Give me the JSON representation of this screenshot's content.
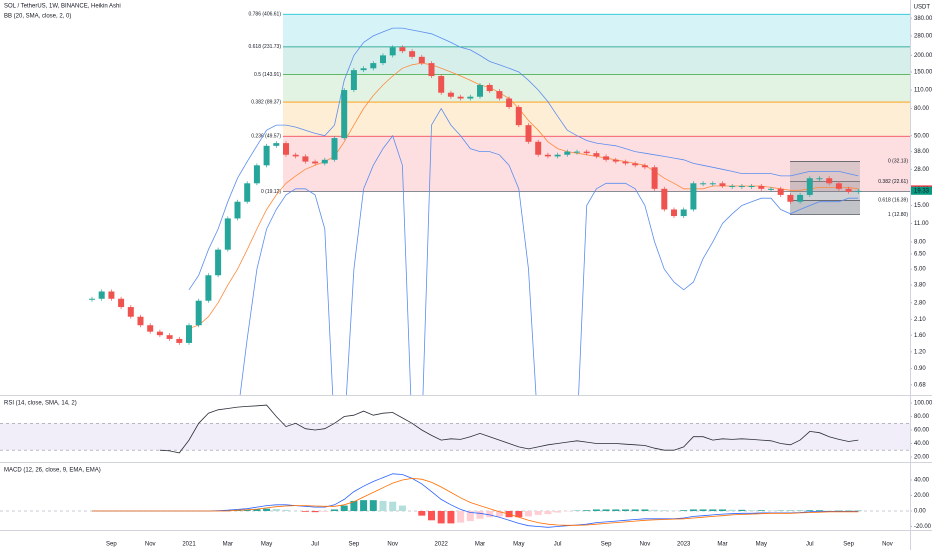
{
  "header": {
    "title": "SOL / TetherUS, 1W, BINANCE, Heikin Ashi",
    "indicator": "BB (20, SMA, close, 2, 0)",
    "currency": "USDT",
    "price_tags": [
      {
        "value": 19.8,
        "label": "19.80",
        "color": "#f23645"
      },
      {
        "value": 19.33,
        "label": "19.33",
        "color": "#089981"
      }
    ]
  },
  "chart_data": [
    {
      "type": "candlestick",
      "log_scale": true,
      "categories": [
        null,
        null,
        "Sep",
        null,
        null,
        null,
        "Nov",
        null,
        null,
        null,
        "2021",
        null,
        null,
        null,
        "Mar",
        null,
        null,
        null,
        "May",
        null,
        null,
        null,
        null,
        "Jul",
        null,
        null,
        null,
        "Sep",
        null,
        null,
        null,
        "Nov",
        null,
        null,
        null,
        null,
        "2022",
        null,
        null,
        null,
        "Mar",
        null,
        null,
        null,
        "May",
        null,
        null,
        null,
        "Jul",
        null,
        null,
        null,
        null,
        "Sep",
        null,
        null,
        null,
        "Nov",
        null,
        null,
        null,
        "2023",
        null,
        null,
        null,
        "Mar",
        null,
        null,
        null,
        "May",
        null,
        null,
        null,
        null,
        "Jul",
        null,
        null,
        null,
        "Sep",
        null,
        null,
        null,
        "Nov"
      ],
      "values": [
        3.0,
        3.4,
        3.0,
        2.6,
        2.2,
        1.9,
        1.7,
        1.6,
        1.5,
        1.4,
        1.9,
        2.9,
        4.5,
        7,
        12,
        16,
        22,
        30,
        42,
        44,
        36,
        35,
        32,
        31,
        33,
        48,
        110,
        155,
        160,
        175,
        200,
        230,
        215,
        195,
        175,
        140,
        105,
        98,
        95,
        98,
        120,
        108,
        95,
        82,
        60,
        45,
        36,
        35,
        36,
        38,
        38,
        37,
        35,
        33,
        32,
        31,
        30,
        29,
        20,
        14,
        12.5,
        14,
        22,
        22,
        22,
        21,
        21,
        21,
        21,
        20,
        20,
        18,
        16,
        18,
        24,
        24,
        22,
        20,
        19,
        19.3,
        null,
        null,
        null
      ],
      "colors": {
        "up": "#26a69a",
        "down": "#ef5350"
      },
      "ylim": [
        0.57,
        520
      ],
      "yticks": [
        {
          "value": 380,
          "label": "380.00"
        },
        {
          "value": 280,
          "label": "280.00"
        },
        {
          "value": 200,
          "label": "200.00"
        },
        {
          "value": 150,
          "label": "150.00"
        },
        {
          "value": 110,
          "label": "110.00"
        },
        {
          "value": 80,
          "label": "80.00"
        },
        {
          "value": 50,
          "label": "50.00"
        },
        {
          "value": 38,
          "label": "38.00"
        },
        {
          "value": 28,
          "label": "28.00"
        },
        {
          "value": 15,
          "label": "15.00"
        },
        {
          "value": 11,
          "label": "11.00"
        },
        {
          "value": 8,
          "label": "8.00"
        },
        {
          "value": 6.5,
          "label": "6.50"
        },
        {
          "value": 5,
          "label": "5.00"
        },
        {
          "value": 3.8,
          "label": "3.80"
        },
        {
          "value": 2.8,
          "label": "2.80"
        },
        {
          "value": 2.1,
          "label": "2.10"
        },
        {
          "value": 1.6,
          "label": "1.60"
        },
        {
          "value": 1.2,
          "label": "1.20"
        },
        {
          "value": 0.9,
          "label": "0.90"
        },
        {
          "value": 0.68,
          "label": "0.68"
        }
      ],
      "overlays": [
        {
          "color": "#5b8def",
          "values": [
            null,
            null,
            null,
            null,
            null,
            null,
            null,
            null,
            null,
            null,
            3.5,
            4.5,
            7,
            10,
            16,
            24,
            32,
            42,
            55,
            60,
            60,
            58,
            55,
            52,
            50,
            60,
            130,
            200,
            250,
            280,
            300,
            320,
            320,
            310,
            300,
            290,
            270,
            250,
            230,
            220,
            200,
            180,
            170,
            160,
            150,
            130,
            110,
            90,
            70,
            55,
            50,
            46,
            44,
            43,
            42,
            40,
            38,
            37,
            36,
            35,
            34,
            33,
            31,
            30,
            29,
            28,
            27,
            26,
            26,
            26,
            26,
            25,
            25,
            26,
            27,
            27,
            27,
            27,
            26,
            25,
            null,
            null,
            null
          ]
        },
        {
          "color": "#ff8a3d",
          "values": [
            null,
            null,
            null,
            null,
            null,
            null,
            null,
            null,
            null,
            null,
            1.8,
            1.9,
            2.2,
            2.8,
            3.8,
            5,
            7,
            10,
            14,
            18,
            22,
            25,
            28,
            30,
            32,
            35,
            45,
            60,
            80,
            100,
            120,
            140,
            160,
            170,
            175,
            170,
            160,
            150,
            140,
            130,
            120,
            115,
            105,
            95,
            80,
            65,
            55,
            45,
            40,
            38,
            37,
            36,
            35,
            34,
            33,
            32,
            31,
            30,
            27,
            24,
            22,
            20,
            20,
            20,
            21,
            21,
            21,
            21,
            21,
            21,
            20.5,
            20,
            19.5,
            19.5,
            20,
            20.5,
            20.5,
            20.5,
            20.5,
            20,
            null,
            null,
            null
          ]
        },
        {
          "color": "#5b8def",
          "values": [
            null,
            null,
            null,
            null,
            null,
            null,
            null,
            null,
            null,
            null,
            0.5,
            0.4,
            0.3,
            0.3,
            0.3,
            0.4,
            1.5,
            5,
            10,
            14,
            18,
            20,
            20,
            18,
            10,
            0.3,
            0.3,
            5,
            20,
            30,
            40,
            50,
            30,
            0.3,
            0.3,
            60,
            80,
            60,
            50,
            40,
            38,
            38,
            36,
            30,
            20,
            5,
            0.3,
            0.3,
            0.3,
            0.3,
            0.3,
            15,
            20,
            22,
            22,
            22,
            20,
            15,
            8,
            5,
            4,
            3.5,
            4,
            6,
            8,
            11,
            13,
            15,
            16,
            17,
            17,
            14,
            13,
            14,
            15,
            16,
            16,
            16,
            17,
            17,
            null,
            null,
            null
          ]
        }
      ],
      "fib": [
        {
          "label": "0.786 (406.61)",
          "value": 406.61,
          "color": "#00bcd4"
        },
        {
          "label": "0.618 (231.73)",
          "value": 231.73,
          "color": "#089981"
        },
        {
          "label": "0.5 (143.91)",
          "value": 143.91,
          "color": "#4caf50"
        },
        {
          "label": "0.382 (89.37)",
          "value": 89.37,
          "color": "#ff9800"
        },
        {
          "label": "0.236 (49.57)",
          "value": 49.57,
          "color": "#f23645"
        },
        {
          "label": "0 (19.12)",
          "value": 19.12,
          "color": "#787b86"
        }
      ],
      "fib_small": [
        {
          "label": "0 (32.13)",
          "value": 32.13,
          "color": "#787b86"
        },
        {
          "label": "0.382 (22.61)",
          "value": 22.61,
          "color": "#787b86"
        },
        {
          "label": "0.618 (16.39)",
          "value": 16.39,
          "color": "#787b86"
        },
        {
          "label": "1 (12.80)",
          "value": 12.8,
          "color": "#787b86"
        }
      ]
    },
    {
      "type": "line",
      "title": "RSI (14, close, SMA, 14, 2)",
      "color": "#2a2e39",
      "band": [
        30,
        70
      ],
      "band_color": "#7e57c2",
      "values": [
        null,
        null,
        null,
        null,
        null,
        null,
        null,
        30,
        29,
        26,
        45,
        70,
        85,
        90,
        92,
        94,
        95,
        96,
        97,
        80,
        65,
        70,
        62,
        60,
        62,
        70,
        80,
        82,
        88,
        82,
        85,
        86,
        78,
        70,
        60,
        52,
        45,
        47,
        46,
        50,
        55,
        50,
        45,
        40,
        35,
        32,
        35,
        38,
        40,
        42,
        44,
        42,
        40,
        40,
        40,
        39,
        38,
        37,
        33,
        30,
        30,
        35,
        50,
        50,
        45,
        47,
        46,
        47,
        46,
        45,
        44,
        40,
        38,
        45,
        58,
        56,
        50,
        46,
        43,
        45,
        null,
        null,
        null
      ],
      "ylim": [
        14,
        109
      ],
      "yticks": [
        {
          "value": 100,
          "label": "100.00"
        },
        {
          "value": 80,
          "label": "80.00"
        },
        {
          "value": 60,
          "label": "60.00"
        },
        {
          "value": 40,
          "label": "40.00"
        },
        {
          "value": 20,
          "label": "20.00"
        }
      ]
    },
    {
      "type": "macd",
      "title": "MACD (12, 26, close, 9, EMA, EMA)",
      "zero_line": true,
      "colors": {
        "up": "#26a69a",
        "up_fading": "#b2dfdb",
        "down": "#ff5252",
        "down_fading": "#ffcdd2"
      },
      "histogram": [
        0,
        0,
        0,
        0,
        0,
        0,
        0,
        0,
        0,
        0,
        0,
        0,
        0,
        0.5,
        1,
        1,
        1.5,
        2.5,
        3,
        2.5,
        1.5,
        0,
        -1,
        -1.5,
        -1,
        2,
        7,
        13,
        14,
        14,
        13,
        12,
        7,
        0,
        -6,
        -12,
        -16,
        -16,
        -15,
        -13,
        -10,
        -8,
        -7,
        -8,
        -8,
        -7,
        -5,
        -4,
        -2,
        -0.5,
        0.5,
        1,
        2,
        2,
        2,
        2,
        2,
        2,
        1.5,
        1,
        0.5,
        1,
        2,
        2,
        2,
        2,
        1.5,
        1.5,
        1,
        1,
        0.5,
        0.5,
        0.5,
        0.5,
        1,
        1,
        0.5,
        0.5,
        0.5,
        0.5,
        null,
        null,
        null
      ],
      "lines": [
        {
          "color": "#2962ff",
          "values": [
            0,
            0,
            0,
            0,
            0,
            0,
            0,
            0,
            0,
            0,
            0,
            0,
            0,
            0.5,
            1,
            2,
            3,
            5,
            7,
            8,
            8,
            7,
            6,
            5,
            5,
            8,
            15,
            25,
            32,
            38,
            43,
            48,
            47,
            42,
            35,
            25,
            15,
            8,
            2,
            -2,
            -3,
            -5,
            -8,
            -12,
            -16,
            -19,
            -20,
            -21,
            -20,
            -19,
            -18,
            -17,
            -15,
            -14,
            -13,
            -12,
            -11,
            -10,
            -10,
            -10,
            -10,
            -9,
            -7,
            -6,
            -5,
            -4,
            -3.5,
            -3,
            -3,
            -2.5,
            -2.5,
            -2.5,
            -2.5,
            -2,
            -1,
            -0.5,
            -0.5,
            -0.5,
            -0.5,
            -0.5,
            null,
            null,
            null
          ]
        },
        {
          "color": "#ff6d00",
          "values": [
            0,
            0,
            0,
            0,
            0,
            0,
            0,
            0,
            0,
            0,
            0,
            0,
            0,
            0,
            0,
            1,
            1.5,
            2.5,
            4,
            5.5,
            6.5,
            7,
            7,
            6.5,
            6,
            6,
            8,
            12,
            18,
            24,
            30,
            36,
            40,
            42,
            41,
            37,
            31,
            24,
            17,
            11,
            7,
            3,
            -1,
            -4,
            -8,
            -12,
            -15,
            -17,
            -18,
            -18.5,
            -18.5,
            -18,
            -17,
            -16,
            -15,
            -14,
            -13,
            -12,
            -11.5,
            -11,
            -10.5,
            -10,
            -9,
            -8,
            -7,
            -6,
            -5,
            -4.5,
            -4,
            -3.5,
            -3,
            -3,
            -3,
            -2.5,
            -2,
            -1.5,
            -1,
            -1,
            -1,
            -1,
            null,
            null,
            null
          ]
        }
      ],
      "ylim": [
        -24.5,
        60.6
      ],
      "yticks": [
        {
          "value": 40,
          "label": "40.00"
        },
        {
          "value": 20,
          "label": "20.00"
        },
        {
          "value": 0,
          "label": "0.00"
        },
        {
          "value": -20,
          "label": "-20.00"
        }
      ]
    }
  ]
}
